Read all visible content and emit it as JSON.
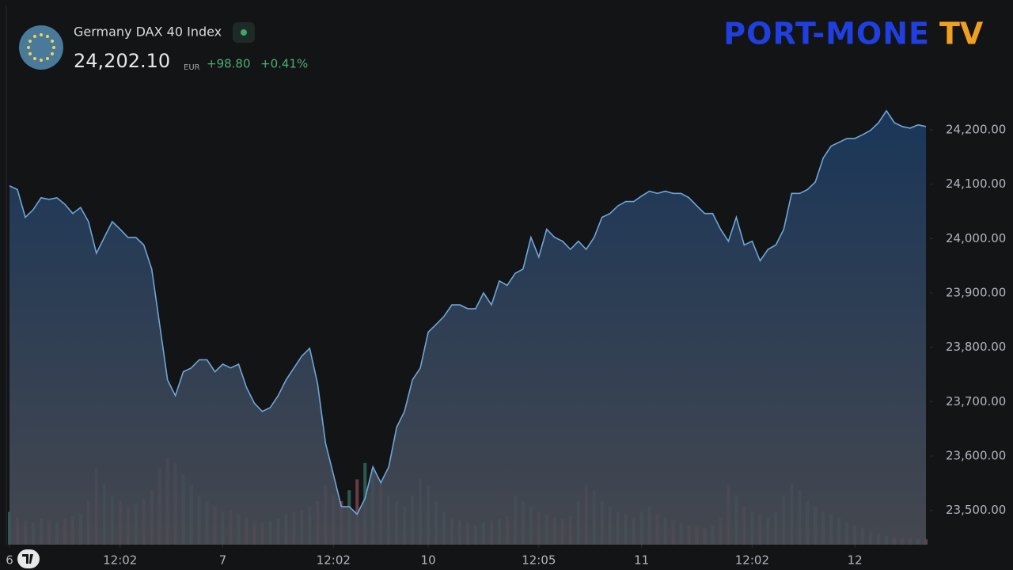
{
  "chart_data": {
    "type": "area",
    "title": "Germany DAX 40 Index",
    "last_price": "24,202.10",
    "currency": "EUR",
    "change": "+98.80",
    "change_percent": "+0.41%",
    "brand": "PORT-MONE",
    "brand_suffix": "TV",
    "line_color": "#6ea6d8",
    "x": [
      0,
      1,
      2,
      3,
      4,
      5,
      6,
      7,
      8,
      9,
      10,
      11,
      12,
      13,
      14,
      15,
      16,
      17,
      18,
      19,
      20,
      21,
      22,
      23,
      24,
      25,
      26,
      27,
      28,
      29,
      30,
      31,
      32,
      33,
      34,
      35,
      36,
      37,
      38,
      39,
      40,
      41,
      42,
      43,
      44,
      45,
      46,
      47,
      48,
      49,
      50,
      51,
      52,
      53,
      54,
      55,
      56,
      57,
      58,
      59,
      60,
      61,
      62,
      63,
      64,
      65,
      66,
      67,
      68,
      69,
      70,
      71,
      72,
      73,
      74,
      75,
      76,
      77,
      78,
      79,
      80,
      81,
      82,
      83,
      84,
      85,
      86,
      87,
      88,
      89,
      90,
      91,
      92,
      93,
      94,
      95,
      96,
      97,
      98,
      99,
      100,
      101,
      102,
      103,
      104,
      105,
      106,
      107,
      108,
      109,
      110,
      111,
      112,
      113,
      114,
      115,
      116
    ],
    "values": [
      24097,
      24090,
      24039,
      24053,
      24075,
      24072,
      24075,
      24063,
      24046,
      24057,
      24031,
      23973,
      24002,
      24031,
      24017,
      24002,
      24002,
      23988,
      23944,
      23842,
      23740,
      23711,
      23755,
      23762,
      23777,
      23777,
      23755,
      23769,
      23762,
      23769,
      23726,
      23697,
      23682,
      23689,
      23711,
      23740,
      23762,
      23784,
      23798,
      23733,
      23624,
      23566,
      23507,
      23507,
      23493,
      23522,
      23580,
      23551,
      23580,
      23653,
      23682,
      23740,
      23762,
      23828,
      23842,
      23857,
      23878,
      23878,
      23871,
      23871,
      23900,
      23878,
      23922,
      23914,
      23936,
      23944,
      24002,
      23966,
      24017,
      24002,
      23995,
      23980,
      23995,
      23980,
      24002,
      24039,
      24046,
      24060,
      24068,
      24068,
      24078,
      24087,
      24083,
      24087,
      24083,
      24083,
      24075,
      24060,
      24046,
      24046,
      24017,
      23995,
      24039,
      23988,
      23995,
      23959,
      23980,
      23988,
      24017,
      24083,
      24083,
      24090,
      24104,
      24148,
      24170,
      24177,
      24184,
      24184,
      24191,
      24199,
      24213,
      24235,
      24213,
      24206,
      24203,
      24209,
      24206
    ],
    "volume": [
      30,
      25,
      22,
      20,
      24,
      22,
      20,
      24,
      26,
      28,
      40,
      70,
      55,
      45,
      40,
      35,
      38,
      42,
      50,
      70,
      80,
      75,
      65,
      55,
      45,
      40,
      35,
      30,
      32,
      28,
      25,
      22,
      20,
      22,
      24,
      28,
      30,
      32,
      35,
      40,
      55,
      45,
      40,
      50,
      60,
      75,
      70,
      55,
      45,
      40,
      35,
      45,
      60,
      55,
      40,
      30,
      25,
      22,
      20,
      18,
      20,
      22,
      24,
      26,
      45,
      40,
      35,
      30,
      28,
      25,
      24,
      26,
      40,
      55,
      50,
      40,
      35,
      30,
      28,
      25,
      30,
      35,
      28,
      25,
      22,
      20,
      18,
      16,
      15,
      18,
      25,
      55,
      45,
      35,
      30,
      28,
      25,
      30,
      45,
      55,
      50,
      40,
      35,
      30,
      28,
      25,
      20,
      18,
      15,
      12,
      10,
      8,
      7,
      6,
      6,
      5,
      5
    ],
    "volume_color_up": "#2f5a52",
    "volume_color_down": "#6a3c46",
    "xlim": [
      -0.2,
      116.5
    ],
    "xticks": [
      {
        "value": 0,
        "label": "6"
      },
      {
        "value": 14,
        "label": "12:02"
      },
      {
        "value": 27,
        "label": "7"
      },
      {
        "value": 41,
        "label": "12:02"
      },
      {
        "value": 53,
        "label": "10"
      },
      {
        "value": 67,
        "label": "12:05"
      },
      {
        "value": 80,
        "label": "11"
      },
      {
        "value": 94,
        "label": "12:02"
      },
      {
        "value": 107,
        "label": "12"
      }
    ],
    "ylim": [
      23437,
      24427
    ],
    "yticks": [
      {
        "value": 23500,
        "label": "23,500.00"
      },
      {
        "value": 23600,
        "label": "23,600.00"
      },
      {
        "value": 23700,
        "label": "23,700.00"
      },
      {
        "value": 23800,
        "label": "23,800.00"
      },
      {
        "value": 23900,
        "label": "23,900.00"
      },
      {
        "value": 24000,
        "label": "24,000.00"
      },
      {
        "value": 24100,
        "label": "24,100.00"
      },
      {
        "value": 24200,
        "label": "24,200.00"
      }
    ],
    "grid": false
  }
}
